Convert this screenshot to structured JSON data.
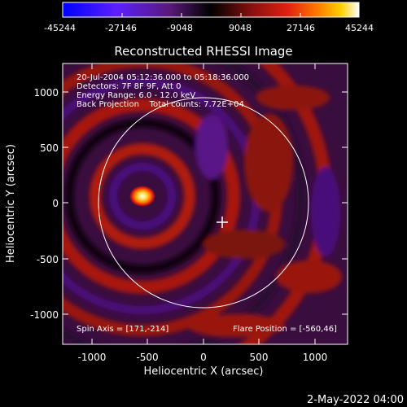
{
  "colorbar": {
    "ticks": [
      "-45244",
      "-27146",
      "-9048",
      "9048",
      "27146",
      "45244"
    ]
  },
  "title": "Reconstructed RHESSI Image",
  "info": {
    "line1": "20-Jul-2004 05:12:36.000 to 05:18:36.000",
    "line2": "Detectors: 7F 8F 9F, Att 0",
    "line3": "Energy Range: 6.0 - 12.0 keV",
    "line4": "Back Projection    Total counts: 7.72E+04"
  },
  "bottom_left": "Spin Axis = [171,-214]",
  "bottom_right": "Flare Position = [-560,46]",
  "timestamp": "2-May-2022 04:00",
  "axes": {
    "xlabel": "Heliocentric X (arcsec)",
    "ylabel": "Heliocentric Y (arcsec)",
    "x_ticks": [
      "-1000",
      "-500",
      "0",
      "500",
      "1000"
    ],
    "y_ticks": [
      "1000",
      "500",
      "0",
      "-500",
      "-1000"
    ]
  },
  "markers": {
    "flare_position": [
      -560,
      46
    ],
    "spin_axis": [
      171,
      -214
    ],
    "solar_radius_arcsec": 950
  },
  "colors": {
    "background": "#000000",
    "text": "#ffffff",
    "colormap": [
      "#0000ff",
      "#6a00ff",
      "#3a0d4a",
      "#000000",
      "#5a0a0a",
      "#cc1111",
      "#ff6600",
      "#ffcc00",
      "#ffffff"
    ]
  }
}
